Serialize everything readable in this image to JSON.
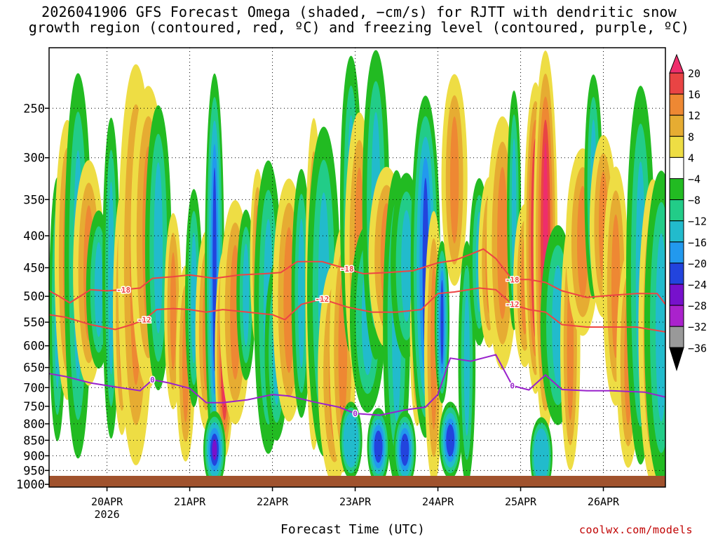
{
  "title": {
    "line1": "2026041906 GFS Forecast Omega (shaded, −cm/s) for RJTT with dendritic snow",
    "line2": "growth region (contoured, red, ºC) and freezing level (contoured, purple, ºC)"
  },
  "x_axis_title": "Forecast Time (UTC)",
  "credit": "coolwx.com/models",
  "chart_data": {
    "type": "heatmap",
    "title": "2026041906 GFS Forecast Omega (shaded, −cm/s) for RJTT with dendritic snow growth region (contoured, red, ºC) and freezing level (contoured, purple, ºC)",
    "xlabel": "Forecast Time (UTC)",
    "ylabel": "",
    "x_tick_labels": [
      "20APR",
      "21APR",
      "22APR",
      "23APR",
      "24APR",
      "25APR",
      "26APR"
    ],
    "x_tick_sublabel": "2026",
    "x_range_days": [
      19.3,
      26.75
    ],
    "y_tick_labels": [
      "250",
      "300",
      "350",
      "400",
      "450",
      "500",
      "550",
      "600",
      "650",
      "700",
      "750",
      "800",
      "850",
      "900",
      "950",
      "1000"
    ],
    "y_range_hpa": [
      1010,
      200
    ],
    "colorbar_labels": [
      "20",
      "16",
      "12",
      "8",
      "4",
      "−4",
      "−8",
      "−12",
      "−16",
      "−20",
      "−24",
      "−28",
      "−32",
      "−36"
    ],
    "colorbar_colors": [
      "#ee2e6c",
      "#e94444",
      "#ee8833",
      "#e6ac32",
      "#eedd44",
      "#ffffff",
      "#22bb22",
      "#22cc88",
      "#22bbcc",
      "#2299ee",
      "#2244dd",
      "#7711cc",
      "#aa22cc",
      "#999999",
      "#000000"
    ],
    "contours": [
      {
        "label": "-18",
        "color": "#ee4444",
        "x": [
          19.3,
          19.4,
          19.55,
          19.8,
          20.0,
          20.2,
          20.4,
          20.55,
          20.8,
          21.0,
          21.3,
          21.6,
          21.9,
          22.1,
          22.3,
          22.6,
          22.9,
          23.1,
          23.4,
          23.7,
          24.0,
          24.2,
          24.4,
          24.55,
          24.7,
          24.9,
          25.1,
          25.3,
          25.5,
          25.8,
          26.1,
          26.4,
          26.65,
          26.75
        ],
        "y": [
          490,
          498,
          512,
          488,
          490,
          488,
          485,
          468,
          465,
          462,
          468,
          462,
          460,
          458,
          440,
          440,
          452,
          460,
          458,
          455,
          442,
          438,
          428,
          420,
          435,
          470,
          470,
          475,
          490,
          502,
          498,
          495,
          495,
          515
        ]
      },
      {
        "label": "-12",
        "color": "#ee4444",
        "x": [
          19.3,
          19.5,
          19.8,
          20.1,
          20.3,
          20.45,
          20.6,
          20.8,
          21.0,
          21.2,
          21.4,
          21.7,
          22.0,
          22.15,
          22.35,
          22.6,
          22.9,
          23.2,
          23.5,
          23.8,
          24.0,
          24.2,
          24.5,
          24.7,
          24.9,
          25.1,
          25.3,
          25.5,
          25.8,
          26.1,
          26.4,
          26.75
        ],
        "y": [
          535,
          540,
          555,
          565,
          555,
          545,
          525,
          523,
          525,
          530,
          525,
          530,
          535,
          545,
          515,
          505,
          520,
          530,
          530,
          525,
          495,
          492,
          485,
          488,
          515,
          525,
          530,
          555,
          560,
          560,
          560,
          570
        ]
      },
      {
        "label": "0",
        "color": "#9922cc",
        "x": [
          19.3,
          19.5,
          19.8,
          20.1,
          20.4,
          20.55,
          20.75,
          21.0,
          21.2,
          21.4,
          21.7,
          22.0,
          22.2,
          22.5,
          22.8,
          23.0,
          23.3,
          23.6,
          23.85,
          24.0,
          24.15,
          24.4,
          24.7,
          24.9,
          25.1,
          25.3,
          25.5,
          25.8,
          26.1,
          26.5,
          26.75
        ],
        "y": [
          665,
          672,
          688,
          698,
          708,
          680,
          688,
          702,
          740,
          740,
          732,
          718,
          722,
          738,
          752,
          770,
          775,
          760,
          752,
          718,
          628,
          635,
          620,
          695,
          706,
          668,
          705,
          708,
          708,
          712,
          725
        ]
      }
    ],
    "surface_color": "#a0522d"
  }
}
